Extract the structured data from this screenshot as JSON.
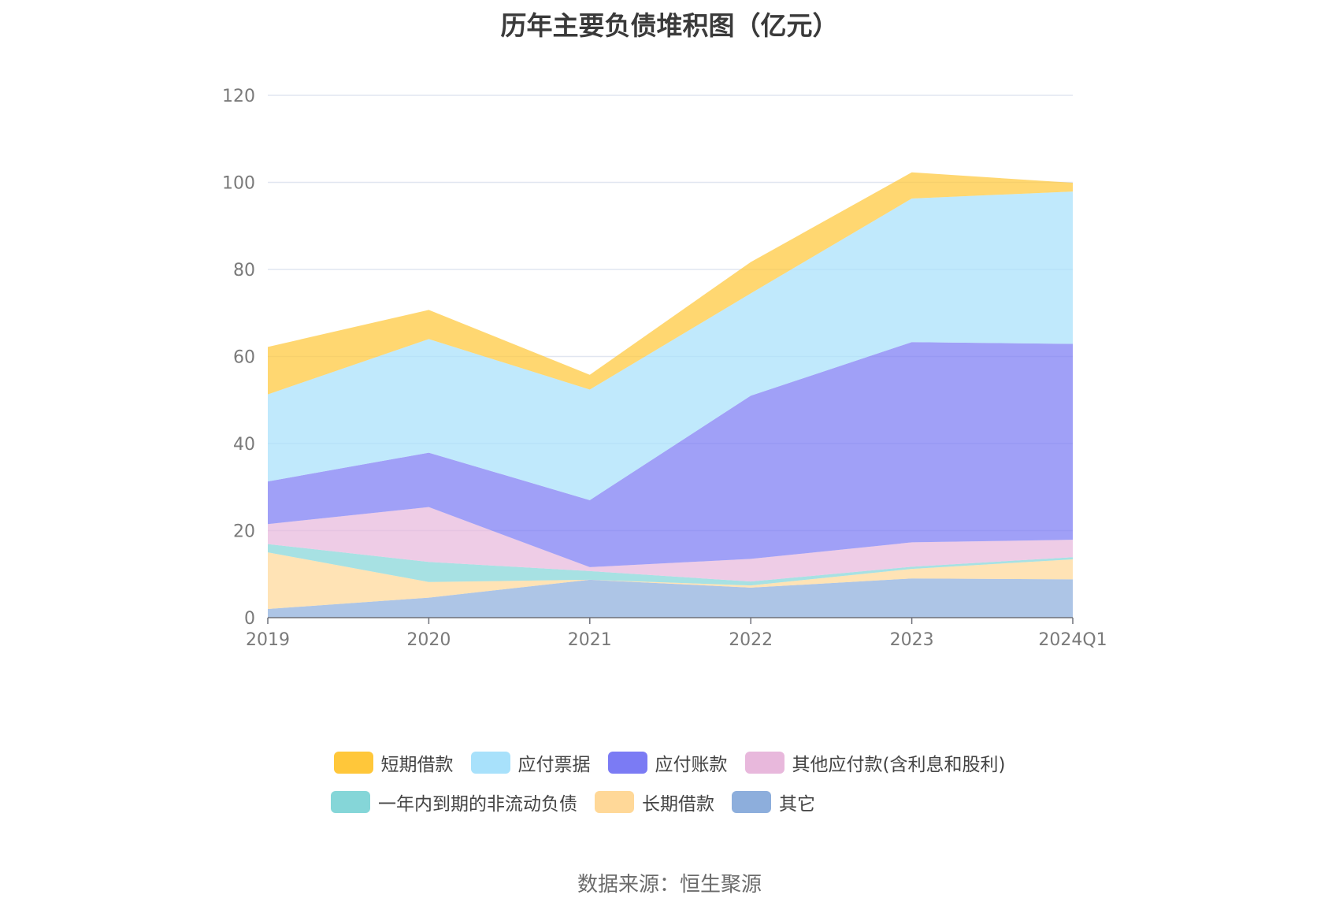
{
  "title": "历年主要负债堆积图（亿元）",
  "source": "数据来源：恒生聚源",
  "chart_data": {
    "type": "area",
    "stacked": true,
    "title": "历年主要负债堆积图（亿元）",
    "categories": [
      "2019",
      "2020",
      "2021",
      "2022",
      "2023",
      "2024Q1"
    ],
    "ylim": [
      0,
      120
    ],
    "yticks": [
      0,
      20,
      40,
      60,
      80,
      100,
      120
    ],
    "grid": true,
    "legend_position": "bottom",
    "series": [
      {
        "name": "其它",
        "color": "#8daedc",
        "values": [
          2,
          4.6,
          8.7,
          6.9,
          9.0,
          8.8
        ]
      },
      {
        "name": "长期借款",
        "color": "#ffd898",
        "values": [
          13,
          3.6,
          0,
          0.5,
          2.2,
          4.6
        ]
      },
      {
        "name": "一年内到期的非流动负债",
        "color": "#85d6d8",
        "values": [
          1.9,
          4.6,
          2.0,
          0.9,
          0.5,
          0.5
        ]
      },
      {
        "name": "其他应付款(含利息和股利)",
        "color": "#e8b8dc",
        "values": [
          4.6,
          12.6,
          0.9,
          5.2,
          5.6,
          4.0
        ]
      },
      {
        "name": "应付账款",
        "color": "#7b7bf4",
        "values": [
          9.8,
          12.5,
          15.4,
          37.5,
          46.0,
          45.0
        ]
      },
      {
        "name": "应付票据",
        "color": "#a8e1fb",
        "values": [
          20.0,
          26.1,
          25.4,
          23.5,
          33.0,
          35.0
        ]
      },
      {
        "name": "短期借款",
        "color": "#ffc73a",
        "values": [
          10.9,
          6.7,
          3.4,
          7.2,
          6.0,
          2.0
        ]
      }
    ]
  },
  "legend_order": [
    [
      "短期借款",
      "应付票据",
      "应付账款",
      "其他应付款(含利息和股利)"
    ],
    [
      "一年内到期的非流动负债",
      "长期借款",
      "其它"
    ]
  ]
}
